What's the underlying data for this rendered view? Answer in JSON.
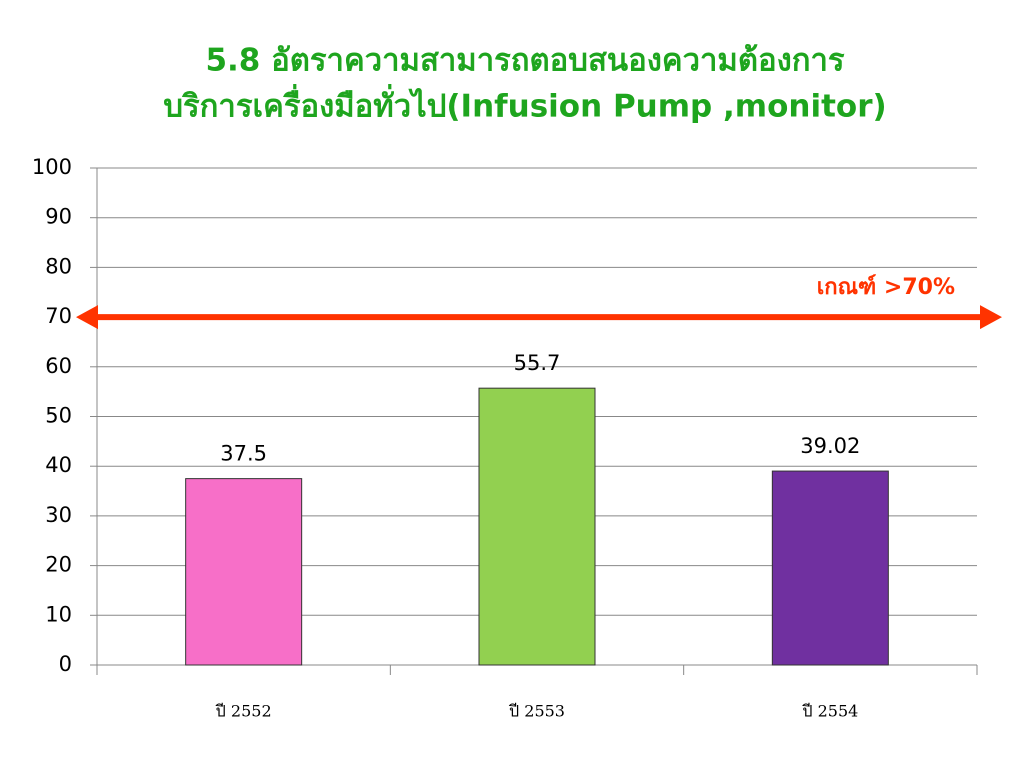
{
  "chart_data": {
    "type": "bar",
    "title_lines": [
      "5.8 อัตราความสามารถตอบสนองความต้องการ",
      "บริการเครื่องมือทั่วไป(Infusion Pump  ,monitor)"
    ],
    "categories": [
      "ปี 2552",
      "ปี 2553",
      "ปี 2554"
    ],
    "values": [
      37.5,
      55.7,
      39.02
    ],
    "colors": [
      "#f76fc8",
      "#92d050",
      "#7030a0"
    ],
    "ylim": [
      0,
      100
    ],
    "yticks": [
      0,
      10,
      20,
      30,
      40,
      50,
      60,
      70,
      80,
      90,
      100
    ],
    "grid": true,
    "annotation": {
      "text": "เกณฑ์ >70%",
      "value": 70,
      "color": "#ff3300"
    }
  }
}
